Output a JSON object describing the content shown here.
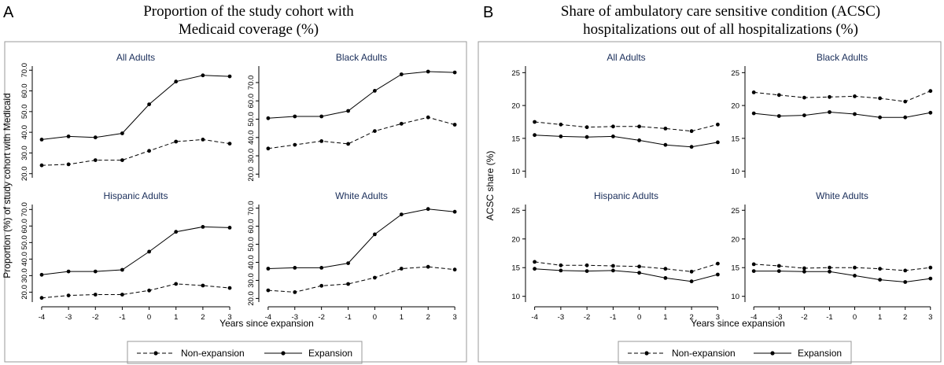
{
  "figure": {
    "panels": [
      {
        "letter": "A",
        "title_lines": [
          "Proportion of the study cohort with",
          "Medicaid coverage (%)"
        ],
        "xlabel": "Years since expansion",
        "ylabel": "Proportion (%) of study cohort with Medicaid",
        "legend": {
          "non_expansion": "Non-expansion",
          "expansion": "Expansion"
        }
      },
      {
        "letter": "B",
        "title_lines": [
          "Share of ambulatory care sensitive condition (ACSC)",
          "hospitalizations out of all hospitalizations (%)"
        ],
        "xlabel": "Years since expansion",
        "ylabel": "ACSC share (%)",
        "legend": {
          "non_expansion": "Non-expansion",
          "expansion": "Expansion"
        }
      }
    ]
  },
  "chart_data": [
    {
      "type": "line",
      "panel": "A",
      "title": "All Adults",
      "x": [
        -4,
        -3,
        -2,
        -1,
        0,
        1,
        2,
        3
      ],
      "ylim": [
        18,
        72
      ],
      "yticks": [
        "20.0",
        "30.0",
        "40.0",
        "50.0",
        "60.0",
        "70.0"
      ],
      "ytick_values": [
        20,
        30,
        40,
        50,
        60,
        70
      ],
      "series": [
        {
          "name": "Non-expansion",
          "values": [
            24,
            24.5,
            26.5,
            26.5,
            31,
            35.5,
            36.5,
            34.5
          ]
        },
        {
          "name": "Expansion",
          "values": [
            36.5,
            38,
            37.5,
            39.5,
            53.5,
            64.5,
            67.5,
            67
          ]
        }
      ]
    },
    {
      "type": "line",
      "panel": "A",
      "title": "Black Adults",
      "x": [
        -4,
        -3,
        -2,
        -1,
        0,
        1,
        2,
        3
      ],
      "ylim": [
        18,
        79
      ],
      "yticks": [
        "20.0",
        "30.0",
        "40.0",
        "50.0",
        "60.0",
        "70.0"
      ],
      "ytick_values": [
        20,
        30,
        40,
        50,
        60,
        70
      ],
      "series": [
        {
          "name": "Non-expansion",
          "values": [
            34,
            36,
            38,
            36.5,
            43.5,
            47.5,
            51,
            47
          ]
        },
        {
          "name": "Expansion",
          "values": [
            50.5,
            51.5,
            51.5,
            54.5,
            65.5,
            74.5,
            76,
            75.5
          ]
        }
      ]
    },
    {
      "type": "line",
      "panel": "A",
      "title": "Hispanic Adults",
      "x": [
        -4,
        -3,
        -2,
        -1,
        0,
        1,
        2,
        3
      ],
      "ylim": [
        14,
        73
      ],
      "yticks": [
        "20.0",
        "30.0",
        "40.0",
        "50.0",
        "60.0",
        "70.0"
      ],
      "ytick_values": [
        20,
        30,
        40,
        50,
        60,
        70
      ],
      "series": [
        {
          "name": "Non-expansion",
          "values": [
            16.5,
            18,
            18.5,
            18.5,
            21,
            25,
            24,
            22.5
          ]
        },
        {
          "name": "Expansion",
          "values": [
            30.5,
            32.5,
            32.5,
            33.5,
            44.5,
            56.5,
            59.5,
            59
          ]
        }
      ]
    },
    {
      "type": "line",
      "panel": "A",
      "title": "White Adults",
      "x": [
        -4,
        -3,
        -2,
        -1,
        0,
        1,
        2,
        3
      ],
      "ylim": [
        18,
        72
      ],
      "yticks": [
        "20.0",
        "30.0",
        "40.0",
        "50.0",
        "60.0",
        "70.0"
      ],
      "ytick_values": [
        20,
        30,
        40,
        50,
        60,
        70
      ],
      "series": [
        {
          "name": "Non-expansion",
          "values": [
            24.5,
            23.5,
            27,
            28,
            31.5,
            36.5,
            37.5,
            36
          ]
        },
        {
          "name": "Expansion",
          "values": [
            36.5,
            37,
            37,
            39.5,
            55.5,
            66.5,
            69.5,
            68
          ]
        }
      ]
    },
    {
      "type": "line",
      "panel": "B",
      "title": "All Adults",
      "x": [
        -4,
        -3,
        -2,
        -1,
        0,
        1,
        2,
        3
      ],
      "ylim": [
        9,
        26
      ],
      "yticks": [
        "10",
        "15",
        "20",
        "25"
      ],
      "ytick_values": [
        10,
        15,
        20,
        25
      ],
      "series": [
        {
          "name": "Non-expansion",
          "values": [
            17.5,
            17.1,
            16.7,
            16.8,
            16.8,
            16.5,
            16.1,
            17.1
          ]
        },
        {
          "name": "Expansion",
          "values": [
            15.5,
            15.3,
            15.2,
            15.3,
            14.7,
            14,
            13.7,
            14.4
          ]
        }
      ]
    },
    {
      "type": "line",
      "panel": "B",
      "title": "Black Adults",
      "x": [
        -4,
        -3,
        -2,
        -1,
        0,
        1,
        2,
        3
      ],
      "ylim": [
        9,
        26
      ],
      "yticks": [
        "10",
        "15",
        "20",
        "25"
      ],
      "ytick_values": [
        10,
        15,
        20,
        25
      ],
      "series": [
        {
          "name": "Non-expansion",
          "values": [
            22,
            21.6,
            21.2,
            21.3,
            21.4,
            21.1,
            20.6,
            22.2
          ]
        },
        {
          "name": "Expansion",
          "values": [
            18.8,
            18.4,
            18.5,
            19,
            18.7,
            18.2,
            18.2,
            18.9
          ]
        }
      ]
    },
    {
      "type": "line",
      "panel": "B",
      "title": "Hispanic Adults",
      "x": [
        -4,
        -3,
        -2,
        -1,
        0,
        1,
        2,
        3
      ],
      "ylim": [
        9,
        26
      ],
      "yticks": [
        "10",
        "15",
        "20",
        "25"
      ],
      "ytick_values": [
        10,
        15,
        20,
        25
      ],
      "series": [
        {
          "name": "Non-expansion",
          "values": [
            16,
            15.4,
            15.4,
            15.3,
            15.2,
            14.8,
            14.3,
            15.7
          ]
        },
        {
          "name": "Expansion",
          "values": [
            14.8,
            14.5,
            14.4,
            14.5,
            14.1,
            13.2,
            12.6,
            13.8
          ]
        }
      ]
    },
    {
      "type": "line",
      "panel": "B",
      "title": "White Adults",
      "x": [
        -4,
        -3,
        -2,
        -1,
        0,
        1,
        2,
        3
      ],
      "ylim": [
        9,
        26
      ],
      "yticks": [
        "10",
        "15",
        "20",
        "25"
      ],
      "ytick_values": [
        10,
        15,
        20,
        25
      ],
      "series": [
        {
          "name": "Non-expansion",
          "values": [
            15.6,
            15.3,
            14.9,
            15,
            15,
            14.8,
            14.5,
            15
          ]
        },
        {
          "name": "Expansion",
          "values": [
            14.4,
            14.4,
            14.3,
            14.3,
            13.6,
            12.9,
            12.5,
            13.1
          ]
        }
      ]
    }
  ]
}
